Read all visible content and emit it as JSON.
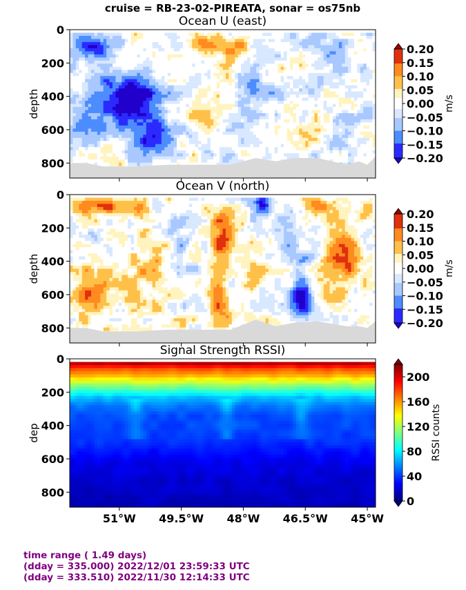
{
  "figure": {
    "suptitle": "cruise = RB-23-02-PIREATA,  sonar = os75nb"
  },
  "footer": {
    "line1": "time range ( 1.49 days)",
    "line2": "(dday = 335.000) 2022/12/01 23:59:33 UTC",
    "line3": "(dday = 333.510) 2022/11/30 12:14:33 UTC"
  },
  "colors": {
    "text_footer": "#800080",
    "bathymetry": "#d9d9d9",
    "diverging": [
      "#2200cc",
      "#2b2bff",
      "#4c8cff",
      "#a8c8ff",
      "#d8e8ff",
      "#ffffff",
      "#fff4c0",
      "#ffc04a",
      "#ff8a1f",
      "#e0300e",
      "#990000"
    ]
  },
  "chart_data": [
    {
      "type": "heatmap",
      "title": "Ocean U (east)",
      "ylabel": "depth",
      "yticks": [
        "0",
        "200",
        "400",
        "600",
        "800"
      ],
      "ylim": [
        890,
        0
      ],
      "xlim": [
        -52.2,
        -44.8
      ],
      "xticks": [
        -51,
        -49.5,
        -48,
        -46.5,
        -45
      ],
      "xticklabels": [],
      "data_depth_max": 810,
      "colorbar": {
        "label": "m/s",
        "ticks": [
          "0.20",
          "0.15",
          "0.10",
          "0.05",
          "0.00",
          "−0.05",
          "−0.10",
          "−0.15",
          "−0.20"
        ],
        "range": [
          -0.2,
          0.2
        ]
      },
      "features": [
        {
          "lon": -51.6,
          "depth": 100,
          "value": -0.18,
          "slon": 0.5,
          "sdep": 70
        },
        {
          "lon": -50.6,
          "depth": 420,
          "value": -0.22,
          "slon": 0.7,
          "sdep": 170
        },
        {
          "lon": -51.6,
          "depth": 480,
          "value": -0.13,
          "slon": 0.6,
          "sdep": 200
        },
        {
          "lon": -50.2,
          "depth": 650,
          "value": -0.13,
          "slon": 0.5,
          "sdep": 150
        },
        {
          "lon": -48.9,
          "depth": 90,
          "value": 0.1,
          "slon": 0.35,
          "sdep": 60
        },
        {
          "lon": -48.2,
          "depth": 110,
          "value": 0.09,
          "slon": 0.3,
          "sdep": 60
        },
        {
          "lon": -47.6,
          "depth": 380,
          "value": -0.07,
          "slon": 0.6,
          "sdep": 140
        },
        {
          "lon": -46.0,
          "depth": 120,
          "value": -0.06,
          "slon": 0.6,
          "sdep": 150
        },
        {
          "lon": -45.6,
          "depth": 680,
          "value": -0.05,
          "slon": 0.5,
          "sdep": 150
        },
        {
          "lon": -49.0,
          "depth": 480,
          "value": 0.03,
          "slon": 0.4,
          "sdep": 120
        }
      ],
      "bathymetry": {
        "lon": [
          -52.2,
          -51.8,
          -51.4,
          -50.6,
          -49.8,
          -49.0,
          -48.3,
          -47.7,
          -47.2,
          -46.8,
          -46.2,
          -45.5,
          -45.2,
          -45.0,
          -44.8
        ],
        "depth": [
          800,
          800,
          820,
          820,
          810,
          810,
          810,
          770,
          790,
          770,
          770,
          810,
          790,
          810,
          760
        ]
      }
    },
    {
      "type": "heatmap",
      "title": "Ocean V (north)",
      "ylabel": "depth",
      "yticks": [
        "0",
        "200",
        "400",
        "600",
        "800"
      ],
      "ylim": [
        890,
        0
      ],
      "xlim": [
        -52.2,
        -44.8
      ],
      "xticks": [
        -51,
        -49.5,
        -48,
        -46.5,
        -45
      ],
      "xticklabels": [],
      "data_depth_max": 810,
      "colorbar": {
        "label": "m/s",
        "ticks": [
          "0.20",
          "0.15",
          "0.10",
          "0.05",
          "0.00",
          "−0.05",
          "−0.10",
          "−0.15",
          "−0.20"
        ],
        "range": [
          -0.2,
          0.2
        ]
      },
      "features": [
        {
          "lon": -51.5,
          "depth": 60,
          "value": 0.18,
          "slon": 0.5,
          "sdep": 50
        },
        {
          "lon": -50.6,
          "depth": 80,
          "value": 0.14,
          "slon": 0.4,
          "sdep": 60
        },
        {
          "lon": -51.6,
          "depth": 580,
          "value": 0.14,
          "slon": 0.4,
          "sdep": 150
        },
        {
          "lon": -50.4,
          "depth": 560,
          "value": 0.07,
          "slon": 0.5,
          "sdep": 200
        },
        {
          "lon": -48.5,
          "depth": 250,
          "value": 0.18,
          "slon": 0.25,
          "sdep": 150
        },
        {
          "lon": -48.6,
          "depth": 650,
          "value": 0.15,
          "slon": 0.25,
          "sdep": 150
        },
        {
          "lon": -47.8,
          "depth": 430,
          "value": 0.07,
          "slon": 0.3,
          "sdep": 150
        },
        {
          "lon": -47.6,
          "depth": 60,
          "value": -0.2,
          "slon": 0.25,
          "sdep": 60
        },
        {
          "lon": -46.9,
          "depth": 300,
          "value": -0.1,
          "slon": 0.3,
          "sdep": 120
        },
        {
          "lon": -46.6,
          "depth": 600,
          "value": -0.18,
          "slon": 0.25,
          "sdep": 160
        },
        {
          "lon": -46.2,
          "depth": 60,
          "value": 0.13,
          "slon": 0.3,
          "sdep": 50
        },
        {
          "lon": -45.6,
          "depth": 350,
          "value": 0.16,
          "slon": 0.35,
          "sdep": 180
        },
        {
          "lon": -49.5,
          "depth": 300,
          "value": -0.05,
          "slon": 0.3,
          "sdep": 200
        },
        {
          "lon": -45.0,
          "depth": 90,
          "value": 0.13,
          "slon": 0.2,
          "sdep": 60
        }
      ],
      "bathymetry": {
        "lon": [
          -52.2,
          -51.8,
          -51.4,
          -50.6,
          -49.8,
          -49.0,
          -48.3,
          -47.7,
          -47.2,
          -46.8,
          -46.2,
          -45.5,
          -45.2,
          -45.0,
          -44.8
        ],
        "depth": [
          800,
          800,
          820,
          820,
          810,
          810,
          810,
          750,
          790,
          770,
          760,
          790,
          790,
          800,
          760
        ]
      }
    },
    {
      "type": "heatmap",
      "title": "Signal Strength RSSI)",
      "ylabel": "dep",
      "yticks": [
        "0",
        "200",
        "400",
        "600",
        "800"
      ],
      "ylim": [
        890,
        0
      ],
      "xlim": [
        -52.2,
        -44.8
      ],
      "xticks": [
        -51,
        -49.5,
        -48,
        -46.5,
        -45
      ],
      "xticklabels": [
        "51°W",
        "49.5°W",
        "48°W",
        "46.5°W",
        "45°W"
      ],
      "data_depth_top": 20,
      "data_depth_max": 890,
      "colorbar": {
        "label": "RSSI counts",
        "ticks": [
          "200",
          "160",
          "120",
          "80",
          "40",
          "0"
        ],
        "range": [
          0,
          220
        ]
      },
      "profile": {
        "depth": [
          20,
          60,
          100,
          150,
          190,
          230,
          280,
          340,
          420,
          500,
          560,
          640,
          720,
          800,
          890
        ],
        "value": [
          215,
          175,
          155,
          120,
          95,
          70,
          55,
          45,
          42,
          38,
          30,
          22,
          18,
          15,
          12
        ]
      },
      "stripes_lon": [
        -50.6,
        -48.4,
        -46.6
      ]
    }
  ]
}
